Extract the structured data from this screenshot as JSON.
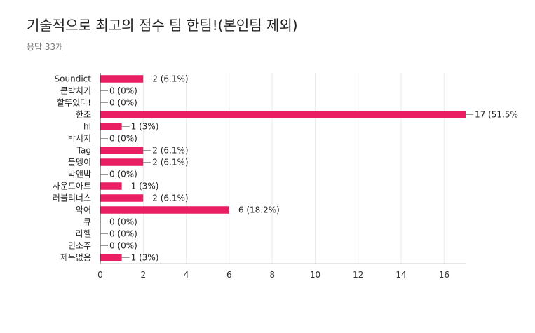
{
  "header": {
    "title": "기술적으로 최고의 점수 팀 한팀!(본인팀 제외)",
    "response_count": "응답 33개"
  },
  "chart_data": {
    "type": "bar",
    "orientation": "horizontal",
    "categories": [
      "Soundict",
      "큰박치기",
      "할뚜있다!",
      "한조",
      "hl",
      "박서지",
      "Tag",
      "돌멩이",
      "박앤박",
      "사운드아트",
      "러블리너스",
      "악어",
      "큐",
      "라헬",
      "민소주",
      "제목없음"
    ],
    "values": [
      2,
      0,
      0,
      17,
      1,
      0,
      2,
      2,
      0,
      1,
      2,
      6,
      0,
      0,
      0,
      1
    ],
    "data_labels": [
      "2 (6.1%)",
      "0 (0%)",
      "0 (0%)",
      "17 (51.5%",
      "1 (3%)",
      "0 (0%)",
      "2 (6.1%)",
      "2 (6.1%)",
      "0 (0%)",
      "1 (3%)",
      "2 (6.1%)",
      "6 (18.2%)",
      "0 (0%)",
      "0 (0%)",
      "0 (0%)",
      "1 (3%)"
    ],
    "xticks": [
      0,
      2,
      4,
      6,
      8,
      10,
      12,
      14,
      16
    ],
    "xlim": [
      0,
      17
    ],
    "grid": true,
    "bar_color": "#e91e63"
  }
}
